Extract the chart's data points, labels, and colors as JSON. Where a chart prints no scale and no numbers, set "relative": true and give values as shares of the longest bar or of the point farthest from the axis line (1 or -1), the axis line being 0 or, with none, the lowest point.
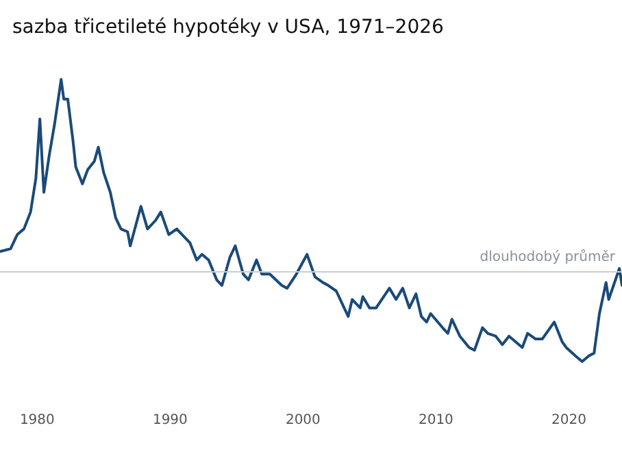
{
  "chart_data": {
    "type": "line",
    "title": "sazba třicetileté hypotéky v USA, 1971–2026",
    "relative": true,
    "xlim": [
      1977.2,
      2024
    ],
    "xticks": [
      1980,
      1990,
      2000,
      2010,
      2020
    ],
    "tick_labels": "x",
    "grid": false,
    "marker": "none",
    "line_style": "solid",
    "ref_lines": [
      {
        "axis": "y",
        "value": 0.32,
        "label": "dlouhodobý průměr",
        "color": "#c8cdd6"
      }
    ],
    "series": [
      {
        "color": "#1a4a7a",
        "x": [
          1977.2,
          1978.0,
          1978.5,
          1979.0,
          1979.5,
          1979.9,
          1980.2,
          1980.5,
          1980.9,
          1981.3,
          1981.8,
          1982.0,
          1982.3,
          1982.7,
          1982.9,
          1983.4,
          1983.8,
          1984.3,
          1984.6,
          1985.0,
          1985.5,
          1985.9,
          1986.3,
          1986.8,
          1987.0,
          1987.8,
          1988.3,
          1988.9,
          1989.3,
          1989.9,
          1990.5,
          1990.9,
          1991.5,
          1992.0,
          1992.4,
          1992.9,
          1993.5,
          1993.9,
          1994.5,
          1994.9,
          1995.5,
          1995.9,
          1996.5,
          1996.9,
          1997.5,
          1998.4,
          1998.8,
          1999.5,
          2000.3,
          2000.9,
          2001.5,
          2001.9,
          2002.5,
          2003.0,
          2003.4,
          2003.7,
          2004.3,
          2004.5,
          2005.0,
          2005.5,
          2006.5,
          2007.0,
          2007.5,
          2008.0,
          2008.5,
          2008.9,
          2009.3,
          2009.6,
          2010.5,
          2010.9,
          2011.2,
          2011.8,
          2012.5,
          2012.9,
          2013.5,
          2013.9,
          2014.5,
          2015.0,
          2015.5,
          2016.5,
          2016.9,
          2017.5,
          2018.0,
          2018.9,
          2019.5,
          2019.8,
          2020.5,
          2021.0,
          2021.5,
          2021.9,
          2022.3,
          2022.8,
          2023.0,
          2023.8,
          2024.0
        ],
        "values": [
          0.39,
          0.4,
          0.45,
          0.47,
          0.53,
          0.65,
          0.86,
          0.6,
          0.73,
          0.84,
          1.0,
          0.93,
          0.93,
          0.78,
          0.69,
          0.63,
          0.68,
          0.71,
          0.76,
          0.67,
          0.6,
          0.51,
          0.47,
          0.46,
          0.41,
          0.55,
          0.47,
          0.5,
          0.53,
          0.45,
          0.47,
          0.45,
          0.42,
          0.36,
          0.38,
          0.36,
          0.29,
          0.27,
          0.37,
          0.41,
          0.31,
          0.29,
          0.36,
          0.31,
          0.31,
          0.27,
          0.26,
          0.31,
          0.38,
          0.3,
          0.28,
          0.27,
          0.25,
          0.2,
          0.16,
          0.22,
          0.19,
          0.23,
          0.19,
          0.19,
          0.26,
          0.22,
          0.26,
          0.19,
          0.24,
          0.16,
          0.14,
          0.17,
          0.12,
          0.1,
          0.15,
          0.09,
          0.05,
          0.04,
          0.12,
          0.1,
          0.09,
          0.06,
          0.09,
          0.05,
          0.1,
          0.08,
          0.08,
          0.14,
          0.07,
          0.05,
          0.02,
          0,
          0.02,
          0.03,
          0.17,
          0.28,
          0.22,
          0.33,
          0.27
        ]
      }
    ]
  }
}
